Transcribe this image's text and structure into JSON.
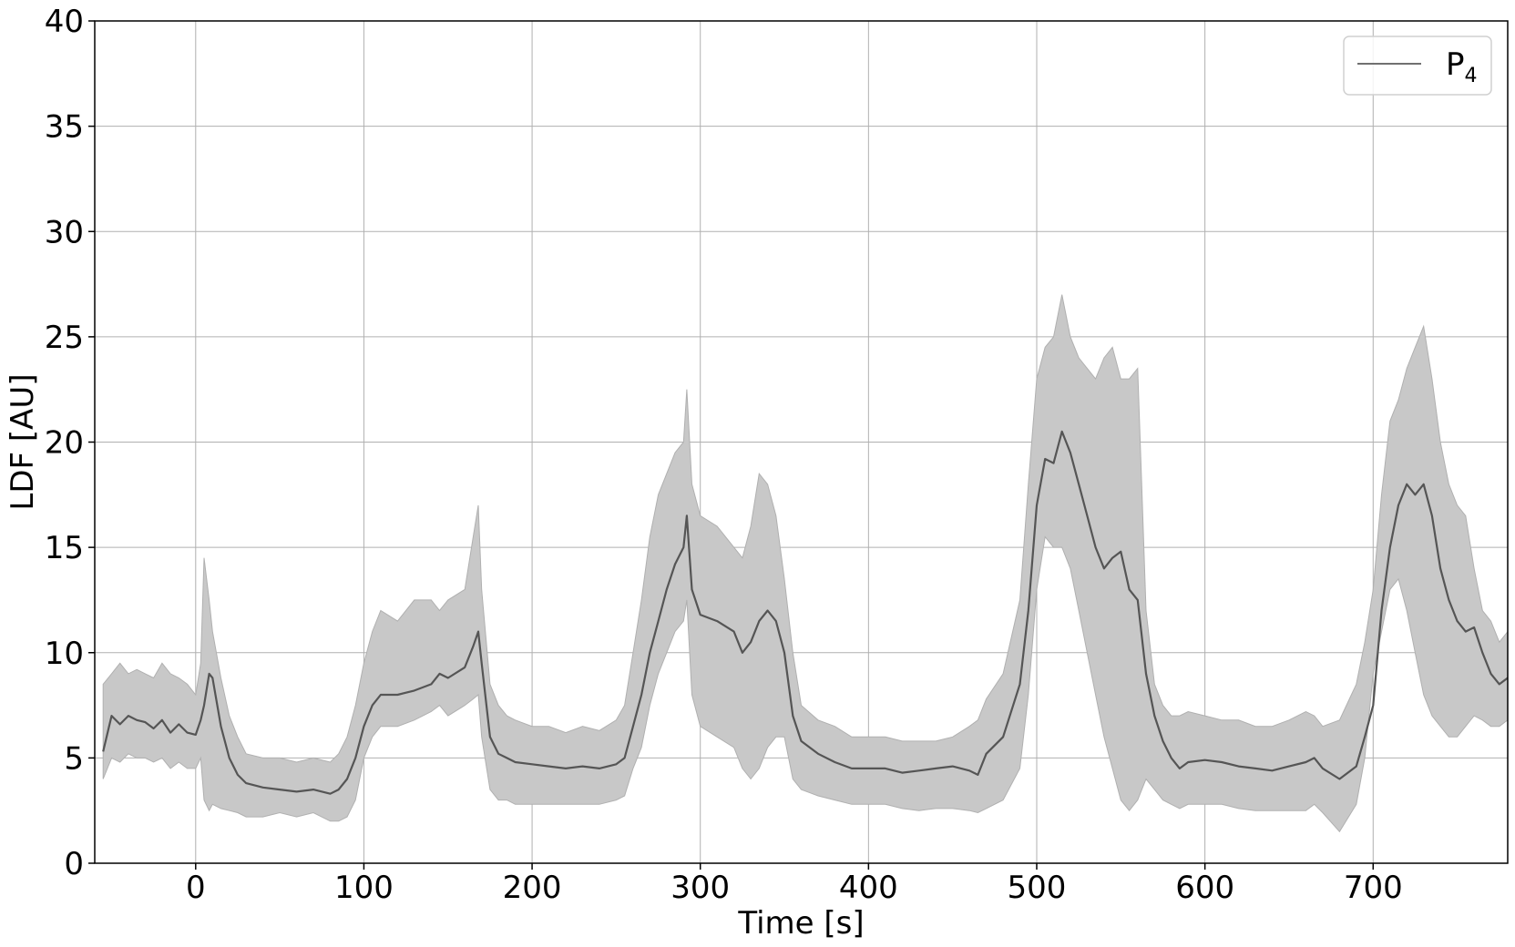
{
  "chart_data": {
    "type": "line",
    "xlabel": "Time [s]",
    "ylabel": "LDF [AU]",
    "xlim": [
      -60,
      780
    ],
    "ylim": [
      0,
      40
    ],
    "x_ticks": [
      0,
      100,
      200,
      300,
      400,
      500,
      600,
      700
    ],
    "y_ticks": [
      0,
      5,
      10,
      15,
      20,
      25,
      30,
      35,
      40
    ],
    "grid": true,
    "legend_placement": "top-right",
    "colors": {
      "mean_line": "#555555",
      "band_fill": "#c8c8c8",
      "band_edge": "#b0b0b0",
      "grid": "#b0b0b0",
      "legend_line": "#707070"
    },
    "series": [
      {
        "name": "P",
        "name_subscript": "4",
        "x": [
          -55,
          -50,
          -45,
          -40,
          -35,
          -30,
          -25,
          -20,
          -15,
          -10,
          -5,
          0,
          3,
          5,
          8,
          10,
          15,
          20,
          25,
          30,
          40,
          50,
          60,
          70,
          80,
          85,
          90,
          95,
          100,
          105,
          110,
          120,
          130,
          140,
          145,
          150,
          160,
          165,
          168,
          170,
          175,
          180,
          185,
          190,
          200,
          210,
          220,
          230,
          240,
          250,
          255,
          260,
          265,
          270,
          275,
          280,
          285,
          290,
          292,
          295,
          300,
          310,
          320,
          325,
          330,
          335,
          340,
          345,
          350,
          355,
          360,
          370,
          380,
          390,
          400,
          410,
          420,
          430,
          440,
          450,
          460,
          465,
          470,
          480,
          490,
          495,
          500,
          505,
          510,
          515,
          520,
          525,
          530,
          535,
          540,
          545,
          550,
          555,
          560,
          565,
          570,
          575,
          580,
          585,
          590,
          600,
          610,
          620,
          630,
          640,
          650,
          660,
          665,
          670,
          680,
          690,
          695,
          700,
          705,
          710,
          715,
          720,
          725,
          730,
          735,
          740,
          745,
          750,
          755,
          760,
          765,
          770,
          775,
          780
        ],
        "mean": [
          5.3,
          7.0,
          6.6,
          7.0,
          6.8,
          6.7,
          6.4,
          6.8,
          6.2,
          6.6,
          6.2,
          6.1,
          6.8,
          7.5,
          9.0,
          8.8,
          6.5,
          5.0,
          4.2,
          3.8,
          3.6,
          3.5,
          3.4,
          3.5,
          3.3,
          3.5,
          4.0,
          5.0,
          6.5,
          7.5,
          8.0,
          8.0,
          8.2,
          8.5,
          9.0,
          8.8,
          9.3,
          10.3,
          11.0,
          9.5,
          6.0,
          5.2,
          5.0,
          4.8,
          4.7,
          4.6,
          4.5,
          4.6,
          4.5,
          4.7,
          5.0,
          6.5,
          8.0,
          10.0,
          11.5,
          13.0,
          14.2,
          15.0,
          16.5,
          13.0,
          11.8,
          11.5,
          11.0,
          10.0,
          10.5,
          11.5,
          12.0,
          11.5,
          10.0,
          7.0,
          5.8,
          5.2,
          4.8,
          4.5,
          4.5,
          4.5,
          4.3,
          4.4,
          4.5,
          4.6,
          4.4,
          4.2,
          5.2,
          6.0,
          8.5,
          12.0,
          17.0,
          19.2,
          19.0,
          20.5,
          19.5,
          18.0,
          16.5,
          15.0,
          14.0,
          14.5,
          14.8,
          13.0,
          12.5,
          9.0,
          7.0,
          5.8,
          5.0,
          4.5,
          4.8,
          4.9,
          4.8,
          4.6,
          4.5,
          4.4,
          4.6,
          4.8,
          5.0,
          4.5,
          4.0,
          4.6,
          6.0,
          7.5,
          12.0,
          15.0,
          17.0,
          18.0,
          17.5,
          18.0,
          16.5,
          14.0,
          12.5,
          11.5,
          11.0,
          11.2,
          10.0,
          9.0,
          8.5,
          8.8
        ],
        "upper": [
          8.5,
          9.0,
          9.5,
          9.0,
          9.2,
          9.0,
          8.8,
          9.5,
          9.0,
          8.8,
          8.5,
          8.0,
          9.5,
          14.5,
          12.5,
          11.0,
          8.8,
          7.0,
          6.0,
          5.2,
          5.0,
          5.0,
          4.8,
          5.0,
          4.8,
          5.2,
          6.0,
          7.5,
          9.5,
          11.0,
          12.0,
          11.5,
          12.5,
          12.5,
          12.0,
          12.5,
          13.0,
          15.5,
          17.0,
          13.0,
          8.5,
          7.5,
          7.0,
          6.8,
          6.5,
          6.5,
          6.2,
          6.5,
          6.3,
          6.8,
          7.5,
          10.0,
          12.5,
          15.5,
          17.5,
          18.5,
          19.5,
          20.0,
          22.5,
          18.0,
          16.5,
          16.0,
          15.0,
          14.5,
          16.0,
          18.5,
          18.0,
          16.5,
          13.5,
          10.0,
          7.5,
          6.8,
          6.5,
          6.0,
          6.0,
          6.0,
          5.8,
          5.8,
          5.8,
          6.0,
          6.5,
          6.8,
          7.8,
          9.0,
          12.5,
          18.0,
          23.0,
          24.5,
          25.0,
          27.0,
          25.0,
          24.0,
          23.5,
          23.0,
          24.0,
          24.5,
          23.0,
          23.0,
          23.5,
          12.0,
          8.5,
          7.5,
          7.0,
          7.0,
          7.2,
          7.0,
          6.8,
          6.8,
          6.5,
          6.5,
          6.8,
          7.2,
          7.0,
          6.5,
          6.8,
          8.5,
          10.5,
          13.0,
          17.5,
          21.0,
          22.0,
          23.5,
          24.5,
          25.5,
          23.0,
          20.0,
          18.0,
          17.0,
          16.5,
          14.0,
          12.0,
          11.5,
          10.5,
          11.0
        ],
        "lower": [
          4.0,
          5.0,
          4.8,
          5.2,
          5.0,
          5.0,
          4.8,
          5.0,
          4.5,
          4.8,
          4.5,
          4.5,
          5.0,
          3.0,
          2.5,
          2.8,
          2.6,
          2.5,
          2.4,
          2.2,
          2.2,
          2.4,
          2.2,
          2.4,
          2.0,
          2.0,
          2.2,
          3.0,
          5.0,
          6.0,
          6.5,
          6.5,
          6.8,
          7.2,
          7.5,
          7.0,
          7.5,
          7.8,
          8.0,
          6.0,
          3.5,
          3.0,
          3.0,
          2.8,
          2.8,
          2.8,
          2.8,
          2.8,
          2.8,
          3.0,
          3.2,
          4.5,
          5.5,
          7.5,
          9.0,
          10.0,
          11.0,
          11.5,
          12.5,
          8.0,
          6.5,
          6.0,
          5.5,
          4.5,
          4.0,
          4.5,
          5.5,
          6.0,
          6.0,
          4.0,
          3.5,
          3.2,
          3.0,
          2.8,
          2.8,
          2.8,
          2.6,
          2.5,
          2.6,
          2.6,
          2.5,
          2.4,
          2.6,
          3.0,
          4.5,
          8.0,
          13.0,
          15.5,
          15.0,
          15.0,
          14.0,
          12.0,
          10.0,
          8.0,
          6.0,
          4.5,
          3.0,
          2.5,
          3.0,
          4.0,
          3.5,
          3.0,
          2.8,
          2.6,
          2.8,
          2.8,
          2.8,
          2.6,
          2.5,
          2.5,
          2.5,
          2.5,
          2.8,
          2.4,
          1.5,
          2.8,
          5.0,
          9.0,
          11.0,
          13.0,
          13.5,
          12.0,
          10.0,
          8.0,
          7.0,
          6.5,
          6.0,
          6.0,
          6.5,
          7.0,
          6.8,
          6.5,
          6.5,
          6.8
        ]
      }
    ]
  }
}
